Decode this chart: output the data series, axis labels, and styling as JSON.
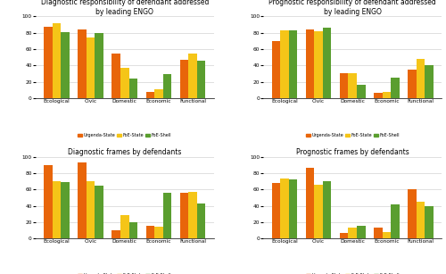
{
  "panels": [
    {
      "title": "Diagnostic responsibility of defendant addressed\nby leading ENGO",
      "categories": [
        "Ecological",
        "Civic",
        "Domestic",
        "Economic",
        "Functional"
      ],
      "series": {
        "Urgenda-State": [
          87,
          84,
          55,
          7,
          47
        ],
        "FoE-State": [
          92,
          74,
          37,
          11,
          55
        ],
        "FoE-Shell": [
          81,
          80,
          24,
          29,
          46
        ]
      }
    },
    {
      "title": "Prognostic responsibility of defendant addressed\nby leading ENGO",
      "categories": [
        "Ecological",
        "Civic",
        "Domestic",
        "Economic",
        "Functional"
      ],
      "series": {
        "Urgenda-State": [
          70,
          84,
          30,
          6,
          35
        ],
        "FoE-State": [
          83,
          82,
          30,
          7,
          48
        ],
        "FoE-Shell": [
          83,
          86,
          16,
          25,
          40
        ]
      }
    },
    {
      "title": "Diagnostic frames by defendants",
      "categories": [
        "Ecological",
        "Civic",
        "Domestic",
        "Economic",
        "Functional"
      ],
      "series": {
        "Urgenda-State": [
          90,
          93,
          10,
          15,
          56
        ],
        "FoE-State": [
          70,
          70,
          28,
          14,
          57
        ],
        "FoE-Shell": [
          69,
          65,
          20,
          56,
          43
        ]
      }
    },
    {
      "title": "Prognostic frames by defendants",
      "categories": [
        "Ecological",
        "Civic",
        "Domestic",
        "Economic",
        "Functional"
      ],
      "series": {
        "Urgenda-State": [
          68,
          86,
          7,
          13,
          60
        ],
        "FoE-State": [
          73,
          66,
          13,
          8,
          45
        ],
        "FoE-Shell": [
          72,
          70,
          15,
          42,
          40
        ]
      }
    }
  ],
  "colors": {
    "Urgenda-State": "#E8650A",
    "FoE-State": "#F5C518",
    "FoE-Shell": "#5A9E2F"
  },
  "ylim": [
    0,
    100
  ],
  "yticks": [
    0,
    20,
    40,
    60,
    80,
    100
  ],
  "bar_width": 0.25,
  "legend_labels": [
    "Urgenda-State",
    "FoE-State",
    "FoE-Shell"
  ]
}
